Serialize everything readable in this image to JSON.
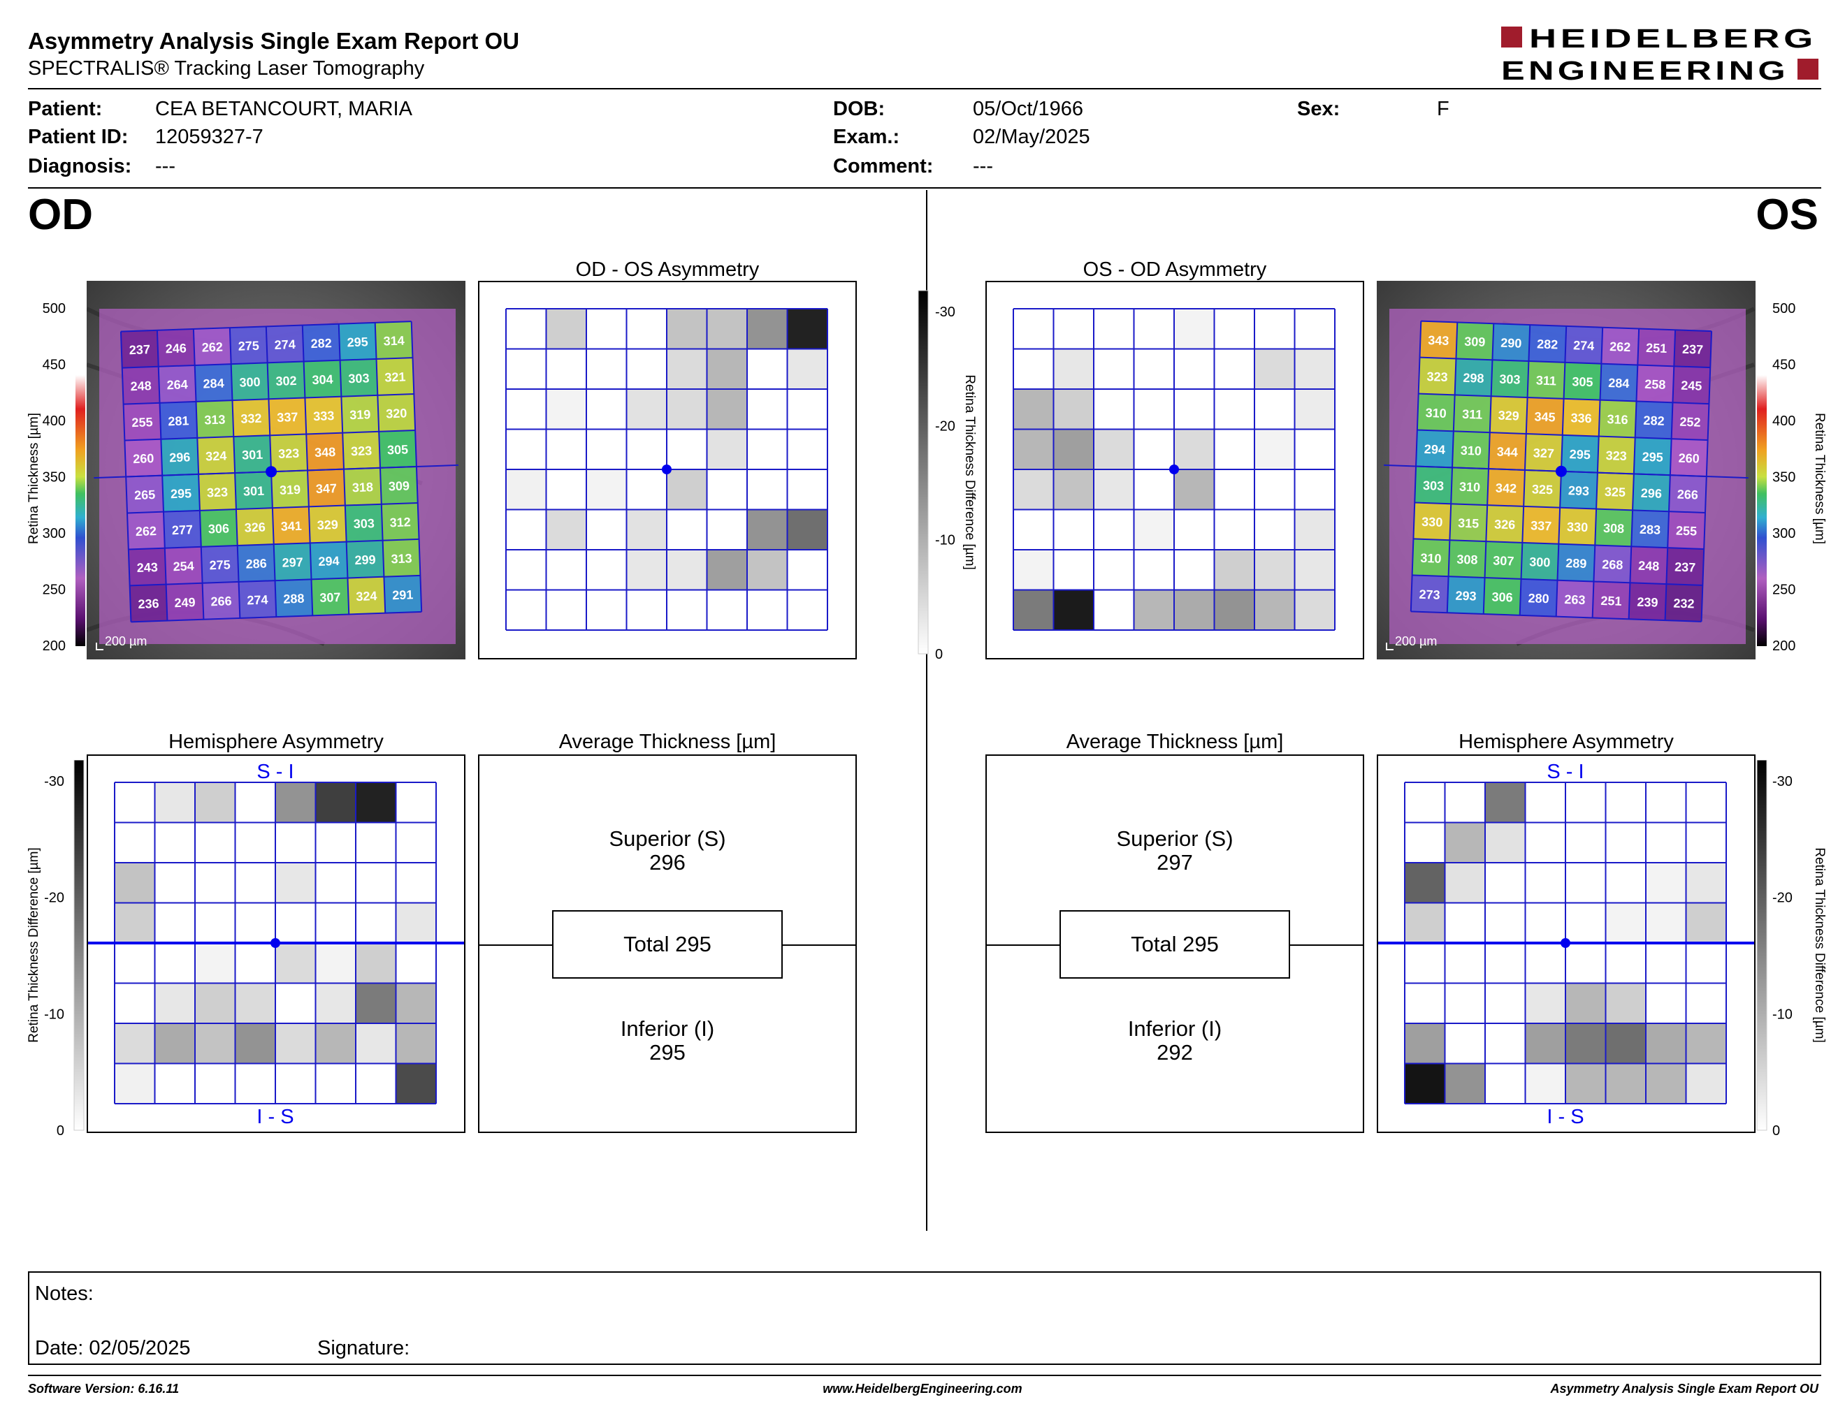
{
  "header": {
    "title": "Asymmetry Analysis Single Exam Report OU",
    "subtitle": "SPECTRALIS® Tracking Laser Tomography",
    "logo_line1": "HEIDELBERG",
    "logo_line2": "ENGINEERING",
    "logo_color": "#a01c2c"
  },
  "patient": {
    "patient_label": "Patient:",
    "patient_value": "CEA BETANCOURT, MARIA",
    "id_label": "Patient ID:",
    "id_value": "12059327-7",
    "diagnosis_label": "Diagnosis:",
    "diagnosis_value": "---",
    "dob_label": "DOB:",
    "dob_value": "05/Oct/1966",
    "exam_label": "Exam.:",
    "exam_value": "02/May/2025",
    "comment_label": "Comment:",
    "comment_value": "---",
    "sex_label": "Sex:",
    "sex_value": "F"
  },
  "od": {
    "eye_label": "OD",
    "asym_title": "OD - OS Asymmetry",
    "hemi_title": "Hemisphere Asymmetry",
    "avg_title": "Average Thickness [µm]",
    "scale_label": "200 µm",
    "hemi_top": "S - I",
    "hemi_bottom": "I - S",
    "superior_label": "Superior (S)",
    "superior_value": "296",
    "total_label": "Total 295",
    "inferior_label": "Inferior (I)",
    "inferior_value": "295",
    "thickness": [
      [
        237,
        246,
        262,
        275,
        274,
        282,
        295,
        314
      ],
      [
        248,
        264,
        284,
        300,
        302,
        304,
        303,
        321
      ],
      [
        255,
        281,
        313,
        332,
        337,
        333,
        319,
        320
      ],
      [
        260,
        296,
        324,
        301,
        323,
        348,
        323,
        305
      ],
      [
        265,
        295,
        323,
        301,
        319,
        347,
        318,
        309
      ],
      [
        262,
        277,
        306,
        326,
        341,
        329,
        303,
        312
      ],
      [
        243,
        254,
        275,
        286,
        297,
        294,
        299,
        313
      ],
      [
        236,
        249,
        266,
        274,
        288,
        307,
        324,
        291
      ]
    ],
    "asym_gray": [
      [
        0,
        0.2,
        0,
        0,
        0.25,
        0.25,
        0.45,
        0.92
      ],
      [
        0,
        0,
        0,
        0,
        0.15,
        0.3,
        0,
        0.1
      ],
      [
        0,
        0.05,
        0,
        0.12,
        0.15,
        0.3,
        0,
        0
      ],
      [
        0,
        0,
        0,
        0,
        0,
        0.12,
        0,
        0
      ],
      [
        0.06,
        0,
        0.05,
        0,
        0.2,
        0,
        0,
        0
      ],
      [
        0,
        0.15,
        0,
        0.12,
        0,
        0,
        0.45,
        0.6
      ],
      [
        0,
        0,
        0,
        0.1,
        0.1,
        0.4,
        0.25,
        0
      ],
      [
        0,
        0,
        0,
        0,
        0,
        0,
        0,
        0
      ]
    ],
    "hemi_gray": [
      [
        0,
        0.1,
        0.2,
        0,
        0.45,
        0.8,
        0.92,
        0
      ],
      [
        0,
        0,
        0,
        0,
        0,
        0,
        0,
        0
      ],
      [
        0.25,
        0,
        0,
        0,
        0.1,
        0,
        0,
        0
      ],
      [
        0.2,
        0,
        0,
        0,
        0,
        0,
        0,
        0.1
      ],
      [
        0,
        0,
        0.05,
        0,
        0.15,
        0.05,
        0.2,
        0
      ],
      [
        0,
        0.1,
        0.2,
        0.15,
        0,
        0.1,
        0.55,
        0.3
      ],
      [
        0.15,
        0.35,
        0.25,
        0.45,
        0.15,
        0.3,
        0.1,
        0.3
      ],
      [
        0.06,
        0,
        0,
        0,
        0,
        0,
        0,
        0.75
      ]
    ]
  },
  "os": {
    "eye_label": "OS",
    "asym_title": "OS - OD Asymmetry",
    "hemi_title": "Hemisphere Asymmetry",
    "avg_title": "Average Thickness [µm]",
    "scale_label": "200 µm",
    "hemi_top": "S - I",
    "hemi_bottom": "I - S",
    "superior_label": "Superior (S)",
    "superior_value": "297",
    "total_label": "Total 295",
    "inferior_label": "Inferior (I)",
    "inferior_value": "292",
    "thickness": [
      [
        343,
        309,
        290,
        282,
        274,
        262,
        251,
        237
      ],
      [
        323,
        298,
        303,
        311,
        305,
        284,
        258,
        245
      ],
      [
        310,
        311,
        329,
        345,
        336,
        316,
        282,
        252
      ],
      [
        294,
        310,
        344,
        327,
        295,
        323,
        295,
        260
      ],
      [
        303,
        310,
        342,
        325,
        293,
        325,
        296,
        266
      ],
      [
        330,
        315,
        326,
        337,
        330,
        308,
        283,
        255
      ],
      [
        310,
        308,
        307,
        300,
        289,
        268,
        248,
        237
      ],
      [
        273,
        293,
        306,
        280,
        263,
        251,
        239,
        232
      ]
    ],
    "asym_gray": [
      [
        0,
        0,
        0,
        0,
        0.05,
        0,
        0,
        0
      ],
      [
        0,
        0.1,
        0,
        0,
        0,
        0,
        0.15,
        0.1
      ],
      [
        0.3,
        0.2,
        0,
        0,
        0,
        0,
        0,
        0.08
      ],
      [
        0.3,
        0.4,
        0.15,
        0,
        0.15,
        0,
        0.05,
        0
      ],
      [
        0.15,
        0.25,
        0.1,
        0,
        0.3,
        0,
        0,
        0
      ],
      [
        0,
        0,
        0,
        0.05,
        0,
        0,
        0,
        0.1
      ],
      [
        0.05,
        0,
        0,
        0,
        0,
        0.2,
        0.15,
        0.1
      ],
      [
        0.55,
        0.95,
        0,
        0.3,
        0.35,
        0.45,
        0.3,
        0.15
      ]
    ],
    "hemi_gray": [
      [
        0,
        0,
        0.55,
        0,
        0,
        0,
        0,
        0
      ],
      [
        0,
        0.3,
        0.12,
        0,
        0,
        0,
        0,
        0
      ],
      [
        0.65,
        0.12,
        0,
        0,
        0,
        0,
        0.05,
        0.1
      ],
      [
        0.2,
        0,
        0,
        0,
        0,
        0.05,
        0.05,
        0.2
      ],
      [
        0,
        0,
        0,
        0,
        0,
        0,
        0,
        0
      ],
      [
        0,
        0,
        0,
        0.1,
        0.3,
        0.2,
        0,
        0
      ],
      [
        0.4,
        0,
        0,
        0.4,
        0.55,
        0.6,
        0.35,
        0.3
      ],
      [
        0.98,
        0.45,
        0,
        0.05,
        0.3,
        0.3,
        0.3,
        0.1
      ]
    ]
  },
  "thickness_axis": {
    "label": "Retina  Thickness [µm]",
    "ticks": [
      "500",
      "450",
      "400",
      "350",
      "300",
      "250",
      "200"
    ]
  },
  "diff_axis": {
    "label": "Retina Thickness Difference [µm]",
    "ticks": [
      "-30",
      "-20",
      "-10",
      "0"
    ]
  },
  "notes": {
    "notes_label": "Notes:",
    "date_label": "Date: 02/05/2025",
    "signature_label": "Signature:"
  },
  "footer": {
    "left": "Software Version: 6.16.11",
    "center": "www.HeidelbergEngineering.com",
    "right": "Asymmetry Analysis Single Exam Report OU"
  },
  "colors": {
    "grid_blue": "#1a1ac8",
    "marker_blue": "#0000ee"
  }
}
